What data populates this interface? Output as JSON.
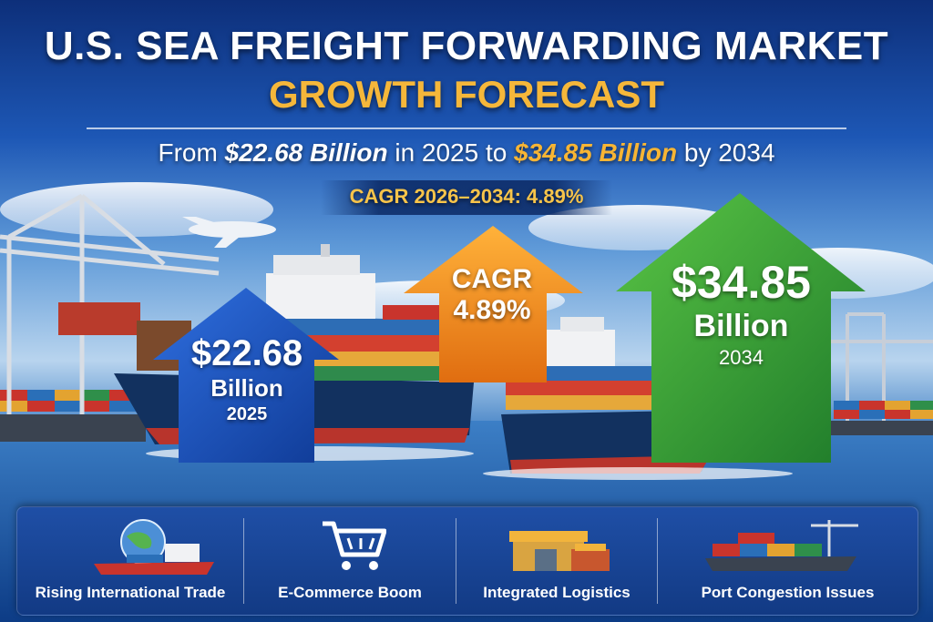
{
  "header": {
    "title_line1": "U.S. SEA FREIGHT FORWARDING MARKET",
    "title_line2": "GROWTH FORECAST"
  },
  "subtitle": {
    "prefix": "From",
    "start_value": "$22.68 Billion",
    "mid": "in 2025 to",
    "end_value": "$34.85 Billion",
    "suffix": "by 2034"
  },
  "cagr_line": "CAGR 2026–2034: 4.89%",
  "arrows": {
    "blue": {
      "value": "$22.68",
      "unit": "Billion",
      "year": "2025",
      "color": "#1b4fb8"
    },
    "orange": {
      "label": "CAGR",
      "value": "4.89%",
      "color": "#f08a1c"
    },
    "green": {
      "value": "$34.85",
      "unit": "Billion",
      "year": "2034",
      "color": "#2e9a34"
    }
  },
  "features": [
    {
      "label": "Rising International Trade",
      "icon": "globe-ship-icon"
    },
    {
      "label": "E-Commerce Boom",
      "icon": "shopping-cart-icon"
    },
    {
      "label": "Integrated Logistics",
      "icon": "warehouse-icon"
    },
    {
      "label": "Port Congestion Issues",
      "icon": "port-ship-icon"
    }
  ],
  "colors": {
    "title_gold": "#f5b73a",
    "navy": "#0d2f7a"
  }
}
